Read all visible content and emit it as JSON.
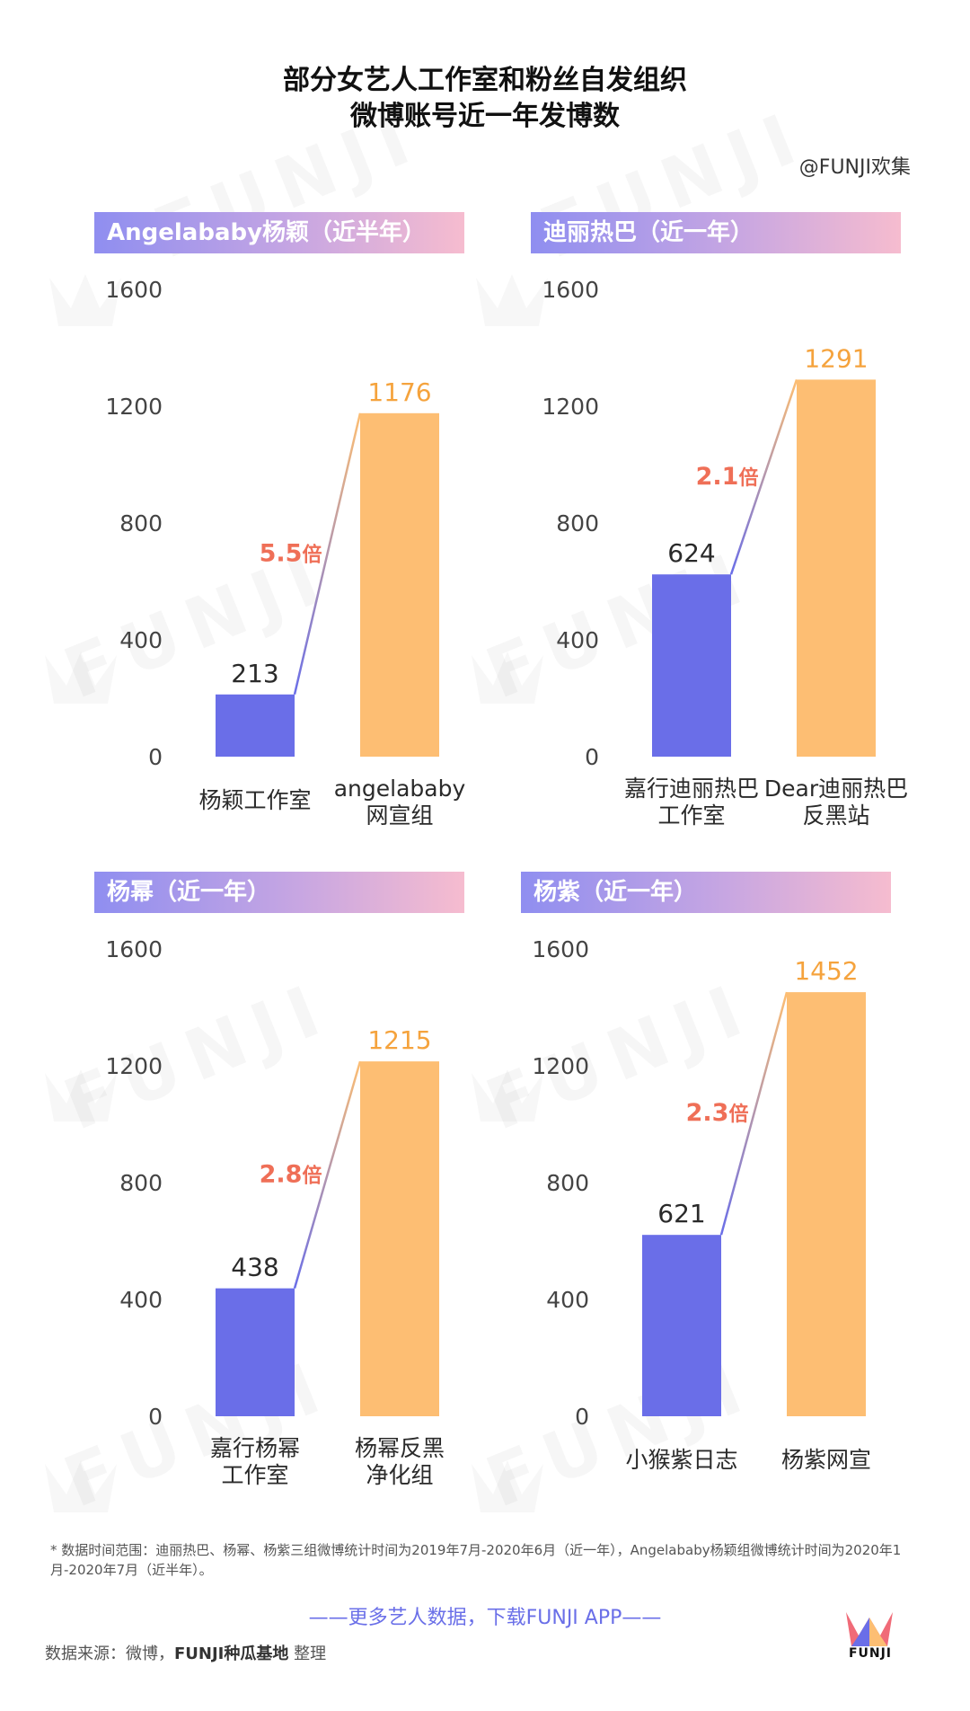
{
  "title_line1": "部分女艺人工作室和粉丝自发组织",
  "title_line2": "微博账号近一年发博数",
  "handle": "@FUNJI欢集",
  "watermark": "FUNJI",
  "colors": {
    "studio": "#6a6ee8",
    "fan": "#fdbe73",
    "ratio": "#ef6f57",
    "axis_text": "#444444"
  },
  "chart_data": [
    {
      "type": "bar",
      "title": "Angelababy杨颖（近半年）",
      "categories": [
        [
          "杨颖工作室"
        ],
        [
          "angelababy",
          "网宣组"
        ]
      ],
      "values": [
        213,
        1176
      ],
      "value_labels": [
        "213",
        "1176"
      ],
      "ratio_label": "5.5",
      "ratio_unit": "倍",
      "ylim": [
        0,
        1600
      ],
      "yticks": [
        "0",
        "400",
        "800",
        "1200",
        "1600"
      ]
    },
    {
      "type": "bar",
      "title": "迪丽热巴（近一年）",
      "categories": [
        [
          "嘉行迪丽热巴",
          "工作室"
        ],
        [
          "Dear迪丽热巴",
          "反黑站"
        ]
      ],
      "values": [
        624,
        1291
      ],
      "value_labels": [
        "624",
        "1291"
      ],
      "ratio_label": "2.1",
      "ratio_unit": "倍",
      "ylim": [
        0,
        1600
      ],
      "yticks": [
        "0",
        "400",
        "800",
        "1200",
        "1600"
      ]
    },
    {
      "type": "bar",
      "title": "杨幂（近一年）",
      "categories": [
        [
          "嘉行杨幂",
          "工作室"
        ],
        [
          "杨幂反黑",
          "净化组"
        ]
      ],
      "values": [
        438,
        1215
      ],
      "value_labels": [
        "438",
        "1215"
      ],
      "ratio_label": "2.8",
      "ratio_unit": "倍",
      "ylim": [
        0,
        1600
      ],
      "yticks": [
        "0",
        "400",
        "800",
        "1200",
        "1600"
      ]
    },
    {
      "type": "bar",
      "title": "杨紫（近一年）",
      "categories": [
        [
          "小猴紫日志"
        ],
        [
          "杨紫网宣"
        ]
      ],
      "values": [
        621,
        1452
      ],
      "value_labels": [
        "621",
        "1452"
      ],
      "ratio_label": "2.3",
      "ratio_unit": "倍",
      "ylim": [
        0,
        1600
      ],
      "yticks": [
        "0",
        "400",
        "800",
        "1200",
        "1600"
      ]
    }
  ],
  "footnote": "* 数据时间范围：迪丽热巴、杨幂、杨紫三组微博统计时间为2019年7月-2020年6月（近一年），Angelababy杨颖组微博统计时间为2020年1月-2020年7月（近半年）。",
  "cta": "——更多艺人数据，下载FUNJI APP——",
  "source_prefix": "数据来源：微博，",
  "source_org": "FUNJI种瓜基地",
  "source_suffix": " 整理",
  "logo_text": "FUNJI"
}
